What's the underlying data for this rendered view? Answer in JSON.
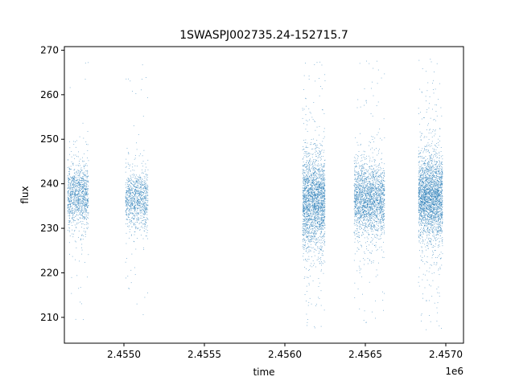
{
  "chart_data": {
    "type": "scatter",
    "title": "1SWASPJ002735.24-152715.7",
    "xlabel": "time",
    "ylabel": "flux",
    "x_offset_label": "1e6",
    "xlim": [
      2.45463,
      2.45711
    ],
    "ylim": [
      204.2,
      270.8
    ],
    "x_ticks": [
      2.455,
      2.4555,
      2.456,
      2.4565,
      2.457
    ],
    "x_tick_labels": [
      "2.4550",
      "2.4555",
      "2.4560",
      "2.4565",
      "2.4570"
    ],
    "y_ticks": [
      210,
      220,
      230,
      240,
      250,
      260,
      270
    ],
    "y_tick_labels": [
      "210",
      "220",
      "230",
      "240",
      "250",
      "260",
      "270"
    ],
    "grid": false,
    "legend": "none",
    "color": "#1f77b4",
    "clusters": [
      {
        "x_start": 2.45465,
        "x_end": 2.45478,
        "flux_center": 237.5,
        "flux_spread": 3.2,
        "flux_min": 207,
        "flux_max": 268,
        "points": 1100
      },
      {
        "x_start": 2.45501,
        "x_end": 2.45515,
        "flux_center": 236.5,
        "flux_spread": 3.0,
        "flux_min": 207,
        "flux_max": 267,
        "points": 1000
      },
      {
        "x_start": 2.45611,
        "x_end": 2.45625,
        "flux_center": 236.0,
        "flux_spread": 5.0,
        "flux_min": 207,
        "flux_max": 268,
        "points": 2300
      },
      {
        "x_start": 2.45643,
        "x_end": 2.45662,
        "flux_center": 236.5,
        "flux_spread": 4.0,
        "flux_min": 207,
        "flux_max": 268,
        "points": 2100
      },
      {
        "x_start": 2.45683,
        "x_end": 2.45698,
        "flux_center": 237.0,
        "flux_spread": 4.6,
        "flux_min": 207,
        "flux_max": 268,
        "points": 2600
      }
    ]
  }
}
